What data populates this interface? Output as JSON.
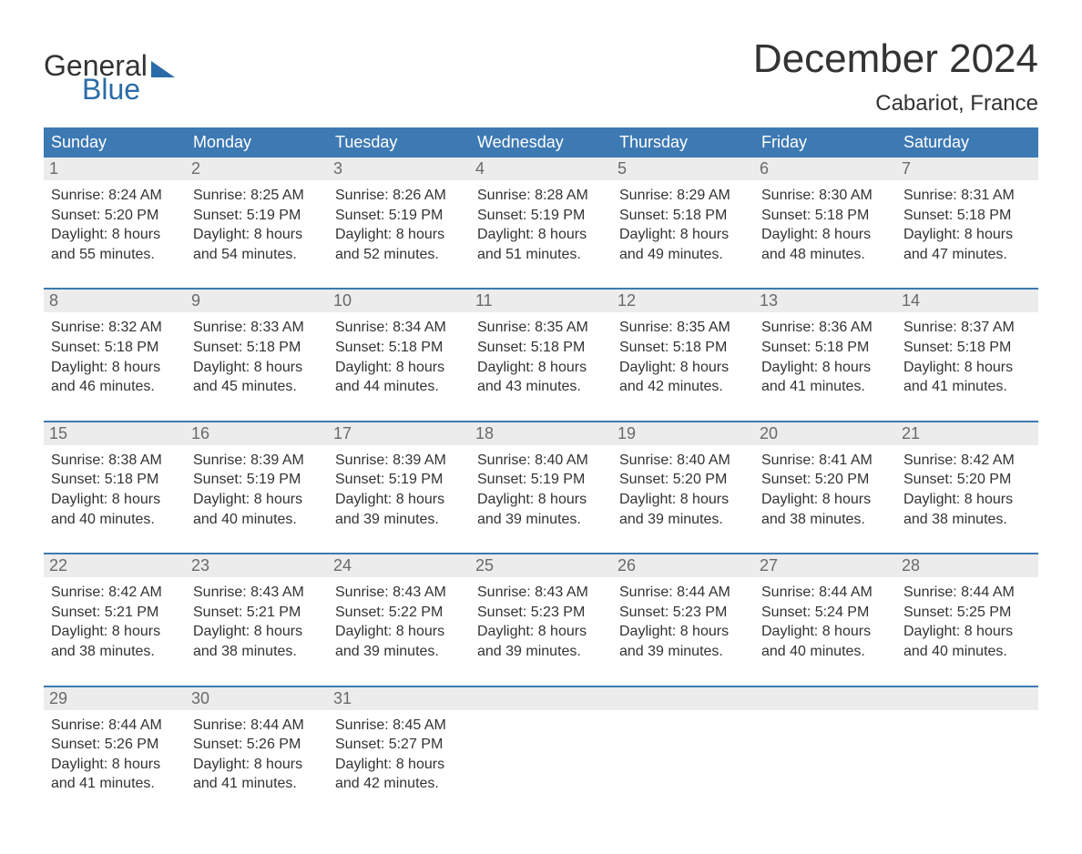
{
  "logo": {
    "text_general": "General",
    "text_blue": "Blue",
    "general_color": "#333333",
    "blue_color": "#2b6ca8"
  },
  "title": "December 2024",
  "location": "Cabariot, France",
  "colors": {
    "header_bg": "#3d79b3",
    "header_text": "#ffffff",
    "daynum_bg": "#ececec",
    "daynum_text": "#6a6a6a",
    "body_text": "#333333",
    "week_border": "#3d79b3",
    "background": "#ffffff"
  },
  "typography": {
    "title_fontsize": 44,
    "location_fontsize": 24,
    "dayheader_fontsize": 18,
    "daynum_fontsize": 18,
    "cell_fontsize": 16
  },
  "day_names": [
    "Sunday",
    "Monday",
    "Tuesday",
    "Wednesday",
    "Thursday",
    "Friday",
    "Saturday"
  ],
  "weeks": [
    [
      {
        "n": "1",
        "sunrise": "8:24 AM",
        "sunset": "5:20 PM",
        "daylight": "8 hours and 55 minutes."
      },
      {
        "n": "2",
        "sunrise": "8:25 AM",
        "sunset": "5:19 PM",
        "daylight": "8 hours and 54 minutes."
      },
      {
        "n": "3",
        "sunrise": "8:26 AM",
        "sunset": "5:19 PM",
        "daylight": "8 hours and 52 minutes."
      },
      {
        "n": "4",
        "sunrise": "8:28 AM",
        "sunset": "5:19 PM",
        "daylight": "8 hours and 51 minutes."
      },
      {
        "n": "5",
        "sunrise": "8:29 AM",
        "sunset": "5:18 PM",
        "daylight": "8 hours and 49 minutes."
      },
      {
        "n": "6",
        "sunrise": "8:30 AM",
        "sunset": "5:18 PM",
        "daylight": "8 hours and 48 minutes."
      },
      {
        "n": "7",
        "sunrise": "8:31 AM",
        "sunset": "5:18 PM",
        "daylight": "8 hours and 47 minutes."
      }
    ],
    [
      {
        "n": "8",
        "sunrise": "8:32 AM",
        "sunset": "5:18 PM",
        "daylight": "8 hours and 46 minutes."
      },
      {
        "n": "9",
        "sunrise": "8:33 AM",
        "sunset": "5:18 PM",
        "daylight": "8 hours and 45 minutes."
      },
      {
        "n": "10",
        "sunrise": "8:34 AM",
        "sunset": "5:18 PM",
        "daylight": "8 hours and 44 minutes."
      },
      {
        "n": "11",
        "sunrise": "8:35 AM",
        "sunset": "5:18 PM",
        "daylight": "8 hours and 43 minutes."
      },
      {
        "n": "12",
        "sunrise": "8:35 AM",
        "sunset": "5:18 PM",
        "daylight": "8 hours and 42 minutes."
      },
      {
        "n": "13",
        "sunrise": "8:36 AM",
        "sunset": "5:18 PM",
        "daylight": "8 hours and 41 minutes."
      },
      {
        "n": "14",
        "sunrise": "8:37 AM",
        "sunset": "5:18 PM",
        "daylight": "8 hours and 41 minutes."
      }
    ],
    [
      {
        "n": "15",
        "sunrise": "8:38 AM",
        "sunset": "5:18 PM",
        "daylight": "8 hours and 40 minutes."
      },
      {
        "n": "16",
        "sunrise": "8:39 AM",
        "sunset": "5:19 PM",
        "daylight": "8 hours and 40 minutes."
      },
      {
        "n": "17",
        "sunrise": "8:39 AM",
        "sunset": "5:19 PM",
        "daylight": "8 hours and 39 minutes."
      },
      {
        "n": "18",
        "sunrise": "8:40 AM",
        "sunset": "5:19 PM",
        "daylight": "8 hours and 39 minutes."
      },
      {
        "n": "19",
        "sunrise": "8:40 AM",
        "sunset": "5:20 PM",
        "daylight": "8 hours and 39 minutes."
      },
      {
        "n": "20",
        "sunrise": "8:41 AM",
        "sunset": "5:20 PM",
        "daylight": "8 hours and 38 minutes."
      },
      {
        "n": "21",
        "sunrise": "8:42 AM",
        "sunset": "5:20 PM",
        "daylight": "8 hours and 38 minutes."
      }
    ],
    [
      {
        "n": "22",
        "sunrise": "8:42 AM",
        "sunset": "5:21 PM",
        "daylight": "8 hours and 38 minutes."
      },
      {
        "n": "23",
        "sunrise": "8:43 AM",
        "sunset": "5:21 PM",
        "daylight": "8 hours and 38 minutes."
      },
      {
        "n": "24",
        "sunrise": "8:43 AM",
        "sunset": "5:22 PM",
        "daylight": "8 hours and 39 minutes."
      },
      {
        "n": "25",
        "sunrise": "8:43 AM",
        "sunset": "5:23 PM",
        "daylight": "8 hours and 39 minutes."
      },
      {
        "n": "26",
        "sunrise": "8:44 AM",
        "sunset": "5:23 PM",
        "daylight": "8 hours and 39 minutes."
      },
      {
        "n": "27",
        "sunrise": "8:44 AM",
        "sunset": "5:24 PM",
        "daylight": "8 hours and 40 minutes."
      },
      {
        "n": "28",
        "sunrise": "8:44 AM",
        "sunset": "5:25 PM",
        "daylight": "8 hours and 40 minutes."
      }
    ],
    [
      {
        "n": "29",
        "sunrise": "8:44 AM",
        "sunset": "5:26 PM",
        "daylight": "8 hours and 41 minutes."
      },
      {
        "n": "30",
        "sunrise": "8:44 AM",
        "sunset": "5:26 PM",
        "daylight": "8 hours and 41 minutes."
      },
      {
        "n": "31",
        "sunrise": "8:45 AM",
        "sunset": "5:27 PM",
        "daylight": "8 hours and 42 minutes."
      },
      null,
      null,
      null,
      null
    ]
  ],
  "labels": {
    "sunrise": "Sunrise:",
    "sunset": "Sunset:",
    "daylight": "Daylight:"
  }
}
